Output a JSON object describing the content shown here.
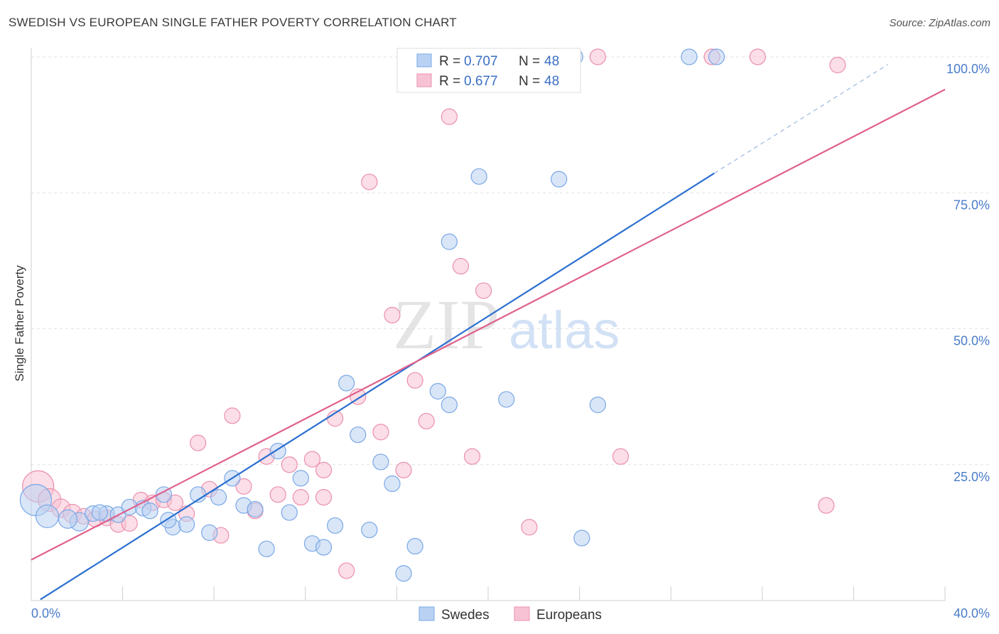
{
  "header": {
    "title": "SWEDISH VS EUROPEAN SINGLE FATHER POVERTY CORRELATION CHART",
    "source": "Source: ZipAtlas.com"
  },
  "watermark": {
    "zip": "ZIP",
    "atlas": "atlas"
  },
  "legend": {
    "r_label": "R =",
    "n_label": "N =",
    "rows": [
      {
        "r": "0.707",
        "n": "48"
      },
      {
        "r": "0.677",
        "n": "48"
      }
    ]
  },
  "chart_data": {
    "type": "scatter",
    "title": "SWEDISH VS EUROPEAN SINGLE FATHER POVERTY CORRELATION CHART",
    "ylabel": "Single Father Poverty",
    "xlim": [
      0,
      40
    ],
    "ylim": [
      0,
      100
    ],
    "x_tick_labels": [
      "0.0%",
      "40.0%"
    ],
    "y_ticks": [
      {
        "value": 25,
        "label": "25.0%"
      },
      {
        "value": 50,
        "label": "50.0%"
      },
      {
        "value": 75,
        "label": "75.0%"
      },
      {
        "value": 100,
        "label": "100.0%"
      }
    ],
    "grid": true,
    "legend_position": "top-center",
    "series": [
      {
        "name": "Swedes",
        "color": "#7aa8e6",
        "fill": "#b9d2f3",
        "line_color": "#2a6fd0",
        "trend": {
          "x0": 0.4,
          "y0": 0.2,
          "x1": 29.9,
          "y1": 78.6,
          "dash_to_x": 37.5,
          "dash_to_y": 98.6
        },
        "points": [
          [
            0.2,
            18.5
          ],
          [
            0.7,
            15.5
          ],
          [
            2.1,
            14.5
          ],
          [
            1.6,
            15.0
          ],
          [
            2.7,
            16.0
          ],
          [
            3.3,
            16.0
          ],
          [
            3.8,
            15.8
          ],
          [
            4.3,
            17.2
          ],
          [
            4.9,
            17.0
          ],
          [
            5.2,
            16.5
          ],
          [
            5.8,
            19.5
          ],
          [
            6.2,
            13.5
          ],
          [
            6.8,
            14.0
          ],
          [
            7.3,
            19.5
          ],
          [
            7.8,
            12.5
          ],
          [
            8.2,
            19.0
          ],
          [
            8.8,
            22.5
          ],
          [
            9.3,
            17.5
          ],
          [
            9.8,
            16.8
          ],
          [
            10.8,
            27.5
          ],
          [
            10.3,
            9.5
          ],
          [
            11.3,
            16.2
          ],
          [
            11.8,
            22.5
          ],
          [
            12.3,
            10.5
          ],
          [
            12.8,
            9.8
          ],
          [
            13.3,
            13.8
          ],
          [
            13.8,
            40.0
          ],
          [
            14.3,
            30.5
          ],
          [
            14.8,
            13.0
          ],
          [
            15.3,
            25.5
          ],
          [
            15.8,
            21.5
          ],
          [
            16.3,
            5.0
          ],
          [
            16.8,
            10.0
          ],
          [
            17.8,
            38.5
          ],
          [
            18.3,
            36.0
          ],
          [
            18.3,
            66.0
          ],
          [
            19.6,
            78.0
          ],
          [
            20.8,
            37.0
          ],
          [
            23.1,
            77.5
          ],
          [
            24.1,
            11.5
          ],
          [
            24.8,
            36.0
          ],
          [
            28.8,
            100.0
          ],
          [
            30.0,
            100.0
          ],
          [
            18.8,
            100.0
          ],
          [
            22.3,
            100.0
          ],
          [
            23.8,
            100.0
          ],
          [
            3.0,
            16.2
          ],
          [
            6.0,
            14.8
          ]
        ],
        "sizes": [
          22,
          16,
          13,
          13,
          11,
          11,
          11,
          11,
          11,
          11,
          11,
          11,
          11,
          11,
          11,
          11,
          11,
          11,
          11,
          11,
          11,
          11,
          11,
          11,
          11,
          11,
          11,
          11,
          11,
          11,
          11,
          11,
          11,
          11,
          11,
          11,
          11,
          11,
          11,
          11,
          11,
          11,
          11,
          11,
          11,
          11,
          11,
          11
        ]
      },
      {
        "name": "Europeans",
        "color": "#ec8fad",
        "fill": "#f7c3d4",
        "line_color": "#e0608c",
        "trend": {
          "x0": 0.0,
          "y0": 7.5,
          "x1": 40.0,
          "y1": 94.0
        },
        "points": [
          [
            0.3,
            21.0
          ],
          [
            0.8,
            18.5
          ],
          [
            1.3,
            17.0
          ],
          [
            1.8,
            16.0
          ],
          [
            2.3,
            15.5
          ],
          [
            2.8,
            15.0
          ],
          [
            3.3,
            15.2
          ],
          [
            3.8,
            14.0
          ],
          [
            4.3,
            14.2
          ],
          [
            4.8,
            18.5
          ],
          [
            5.3,
            18.0
          ],
          [
            5.8,
            18.5
          ],
          [
            6.3,
            18.0
          ],
          [
            6.8,
            16.0
          ],
          [
            7.3,
            29.0
          ],
          [
            7.8,
            20.5
          ],
          [
            8.3,
            12.0
          ],
          [
            8.8,
            34.0
          ],
          [
            9.3,
            21.0
          ],
          [
            9.8,
            16.5
          ],
          [
            10.3,
            26.5
          ],
          [
            10.8,
            19.5
          ],
          [
            11.3,
            25.0
          ],
          [
            11.8,
            19.0
          ],
          [
            12.3,
            26.0
          ],
          [
            12.8,
            24.0
          ],
          [
            13.3,
            33.5
          ],
          [
            13.8,
            5.5
          ],
          [
            14.3,
            37.5
          ],
          [
            15.3,
            31.0
          ],
          [
            15.8,
            52.5
          ],
          [
            16.3,
            24.0
          ],
          [
            16.8,
            40.5
          ],
          [
            17.3,
            33.0
          ],
          [
            18.3,
            89.0
          ],
          [
            18.8,
            61.5
          ],
          [
            19.3,
            26.5
          ],
          [
            19.8,
            57.0
          ],
          [
            14.8,
            77.0
          ],
          [
            21.8,
            13.5
          ],
          [
            25.8,
            26.5
          ],
          [
            31.8,
            100.0
          ],
          [
            34.8,
            17.5
          ],
          [
            35.3,
            98.5
          ],
          [
            29.8,
            100.0
          ],
          [
            21.3,
            100.0
          ],
          [
            24.8,
            100.0
          ],
          [
            12.8,
            19.0
          ]
        ],
        "sizes": [
          22,
          16,
          13,
          13,
          11,
          11,
          11,
          11,
          11,
          11,
          11,
          11,
          11,
          11,
          11,
          11,
          11,
          11,
          11,
          11,
          11,
          11,
          11,
          11,
          11,
          11,
          11,
          11,
          11,
          11,
          11,
          11,
          11,
          11,
          11,
          11,
          11,
          11,
          11,
          11,
          11,
          11,
          11,
          11,
          11,
          11,
          11,
          11
        ]
      }
    ]
  }
}
